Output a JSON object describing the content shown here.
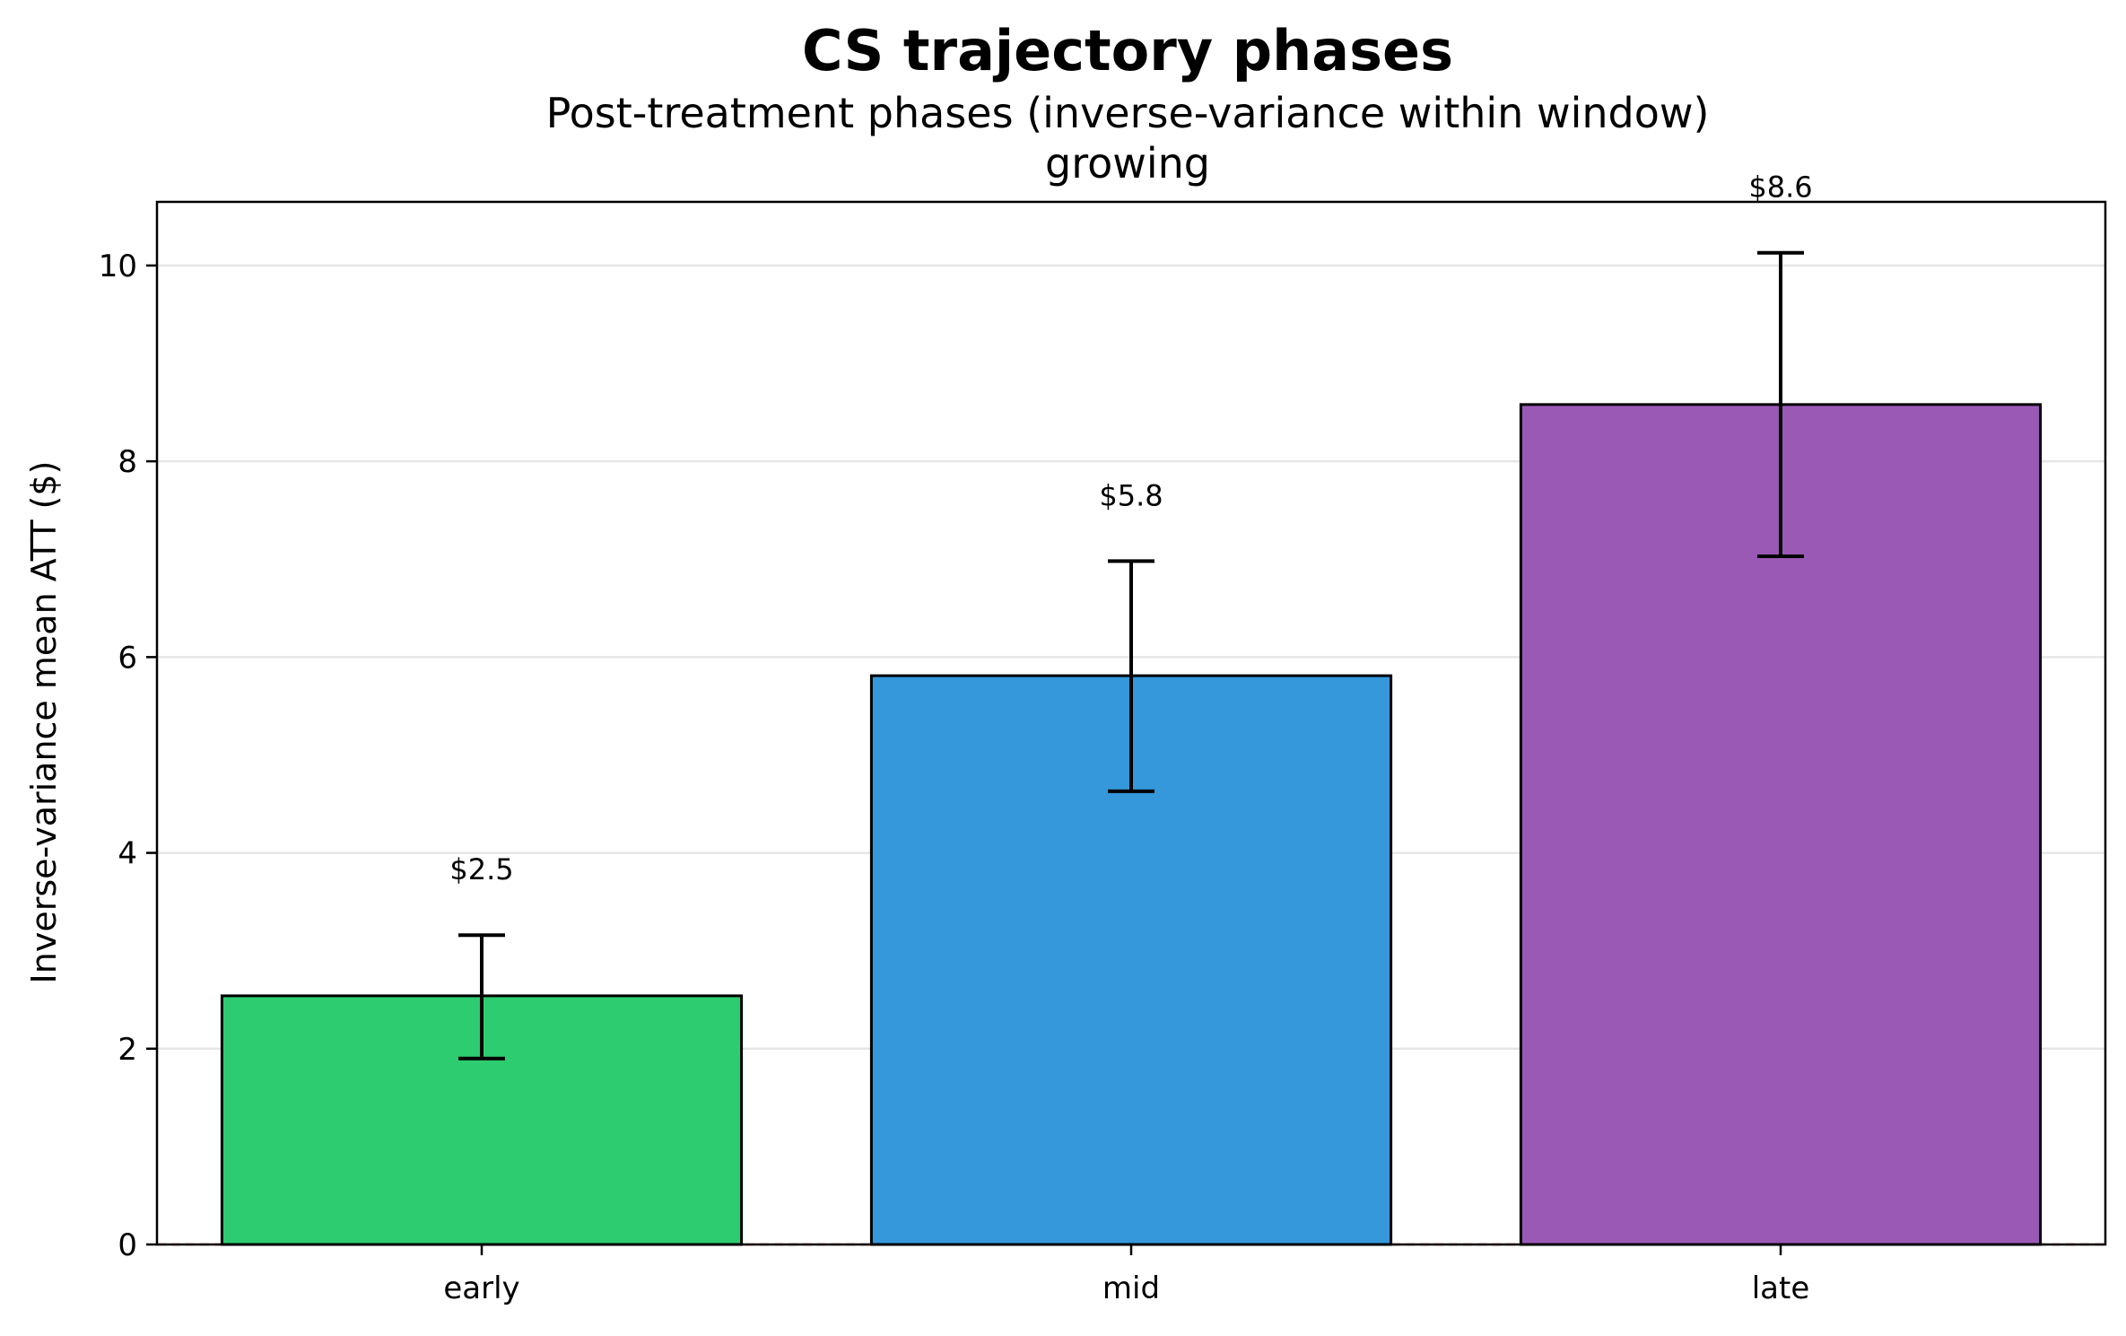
{
  "chart_data": {
    "type": "bar",
    "title": "CS trajectory phases",
    "subtitle": "Post-treatment phases (inverse-variance within window)",
    "subtitle2": "growing",
    "xlabel": "",
    "ylabel": "Inverse-variance mean ATT ($)",
    "categories": [
      "early",
      "mid",
      "late"
    ],
    "values": [
      2.54,
      5.81,
      8.58
    ],
    "error_low": [
      1.9,
      4.63,
      7.03
    ],
    "error_high": [
      3.16,
      6.98,
      10.13
    ],
    "data_labels": [
      "$2.5",
      "$5.8",
      "$8.6"
    ],
    "colors": [
      "#2ecc71",
      "#3498db",
      "#9b59b6"
    ],
    "ylim": [
      0,
      10.65
    ],
    "yticks": [
      0,
      2,
      4,
      6,
      8,
      10
    ],
    "ytick_labels": [
      "0",
      "2",
      "4",
      "6",
      "8",
      "10"
    ],
    "reference_line": {
      "y": 0,
      "color": "#d9534f",
      "style": "dashed"
    },
    "grid": "horizontal",
    "edge_color": "#000000",
    "grid_color": "#e6e6e6"
  }
}
